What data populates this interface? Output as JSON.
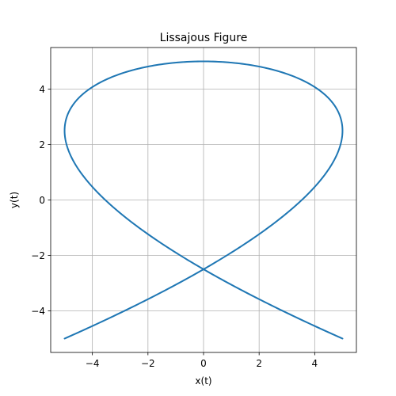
{
  "chart_data": {
    "type": "line",
    "title": "Lissajous Figure",
    "xlabel": "x(t)",
    "ylabel": "y(t)",
    "xlim": [
      -5.5,
      5.5
    ],
    "ylim": [
      -5.5,
      5.5
    ],
    "xticks": [
      -4,
      -2,
      0,
      2,
      4
    ],
    "yticks": [
      -4,
      -2,
      0,
      2,
      4
    ],
    "xtick_labels": [
      "−4",
      "−2",
      "0",
      "2",
      "4"
    ],
    "ytick_labels": [
      "−4",
      "−2",
      "0",
      "2",
      "4"
    ],
    "grid": true,
    "series": [
      {
        "color": "#1f77b4",
        "parametric": {
          "x": "5*sin(3t + pi/4)",
          "y": "5*sin(2t)",
          "t_range": [
            0,
            6.283185307179586
          ],
          "samples": 1000
        }
      }
    ]
  }
}
